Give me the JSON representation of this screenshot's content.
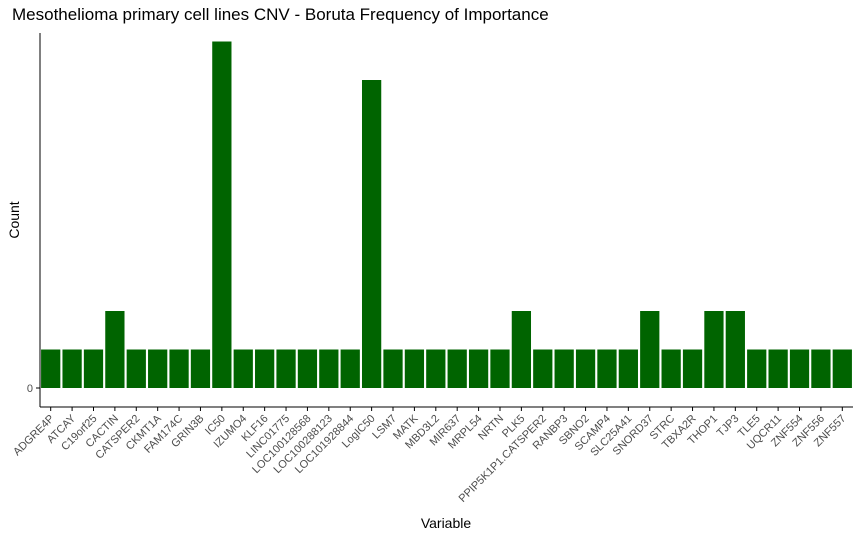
{
  "chart_data": {
    "type": "bar",
    "title": "Mesothelioma primary cell lines CNV  - Boruta Frequency of Importance",
    "xlabel": "Variable",
    "ylabel": "Count",
    "y_ticks": [
      "0"
    ],
    "ylim": [
      0,
      9
    ],
    "bar_color": "#006400",
    "grid": false,
    "categories": [
      "ADGRE4P",
      "ATCAY",
      "C19orf25",
      "CACTIN",
      "CATSPER2",
      "CKMT1A",
      "FAM174C",
      "GRIN3B",
      "IC50",
      "IZUMO4",
      "KLF16",
      "LINC01775",
      "LOC100128568",
      "LOC100288123",
      "LOC101928844",
      "LogIC50",
      "LSM7",
      "MATK",
      "MBD3L2",
      "MIR637",
      "MRPL54",
      "NRTN",
      "PLK5",
      "PPIP5K1P1.CATSPER2",
      "RANBP3",
      "SBNO2",
      "SCAMP4",
      "SLC25A41",
      "SNORD37",
      "STRC",
      "TBXA2R",
      "THOP1",
      "TJP3",
      "TLE5",
      "UQCR11",
      "ZNF554",
      "ZNF556",
      "ZNF557"
    ],
    "values": [
      1,
      1,
      1,
      2,
      1,
      1,
      1,
      1,
      9,
      1,
      1,
      1,
      1,
      1,
      1,
      8,
      1,
      1,
      1,
      1,
      1,
      1,
      2,
      1,
      1,
      1,
      1,
      1,
      2,
      1,
      1,
      2,
      2,
      1,
      1,
      1,
      1,
      1
    ]
  }
}
